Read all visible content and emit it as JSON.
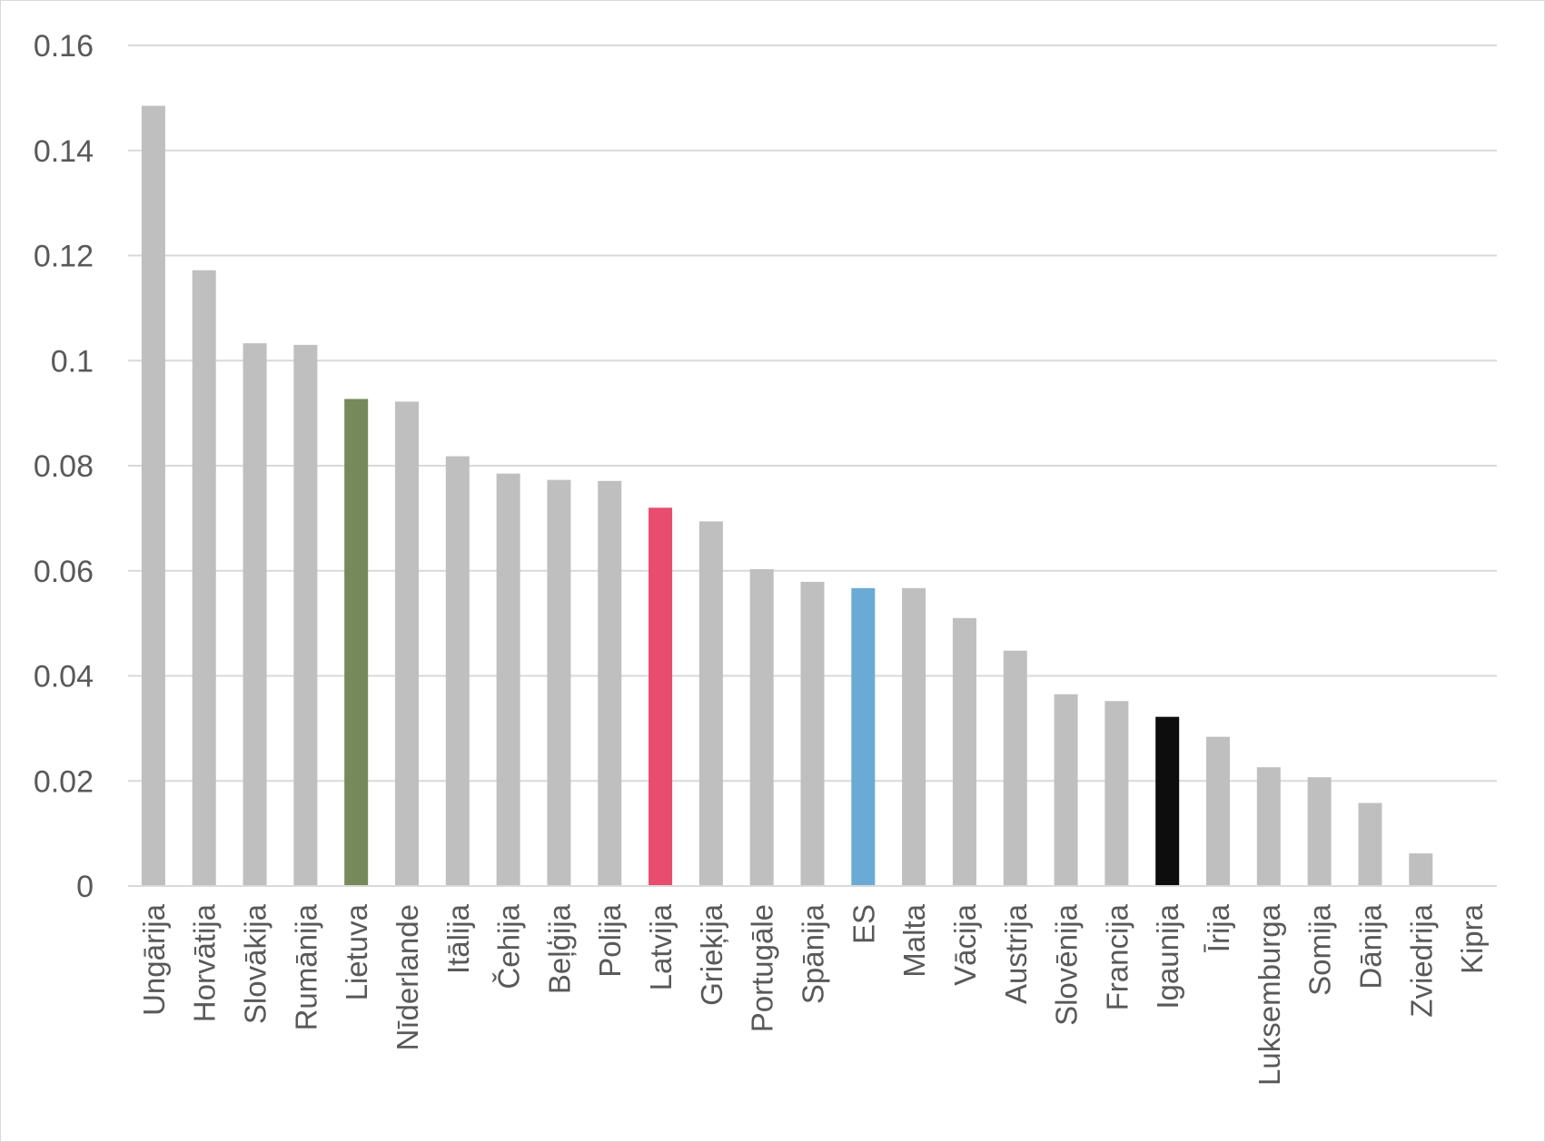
{
  "chart_data": {
    "type": "bar",
    "title": "",
    "xlabel": "",
    "ylabel": "",
    "ylim": [
      0,
      0.16
    ],
    "yticks": [
      "0",
      "0.02",
      "0.04",
      "0.06",
      "0.08",
      "0.1",
      "0.12",
      "0.14",
      "0.16"
    ],
    "grid": true,
    "legend": "none",
    "categories": [
      "Ungārija",
      "Horvātija",
      "Slovākija",
      "Rumānija",
      "Lietuva",
      "Nīderlande",
      "Itālija",
      "Čehija",
      "Beļģija",
      "Polija",
      "Latvija",
      "Grieķija",
      "Portugāle",
      "Spānija",
      "ES",
      "Malta",
      "Vācija",
      "Austrija",
      "Slovēnija",
      "Francija",
      "Igaunija",
      "Īrija",
      "Luksemburga",
      "Somija",
      "Dānija",
      "Zviedrija",
      "Kipra"
    ],
    "values": [
      0.1485,
      0.1172,
      0.1033,
      0.103,
      0.0927,
      0.0922,
      0.0818,
      0.0785,
      0.0773,
      0.0771,
      0.072,
      0.0694,
      0.0603,
      0.0579,
      0.0567,
      0.0567,
      0.051,
      0.0448,
      0.0365,
      0.0352,
      0.0322,
      0.0284,
      0.0226,
      0.0207,
      0.0158,
      0.0062,
      0
    ],
    "colors": {
      "default": "#bfbfbf",
      "Lietuva": "#76895a",
      "Latvija": "#e84c6e",
      "ES": "#6aaad5",
      "Igaunija": "#0d0d0d"
    },
    "gridline_color": "#d9d9d9",
    "axis_color": "#d9d9d9"
  }
}
